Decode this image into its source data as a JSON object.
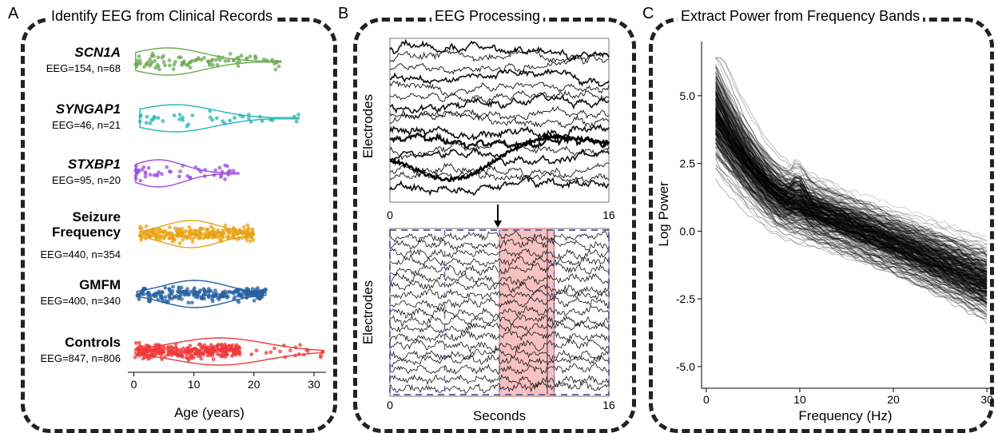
{
  "panels": {
    "a": {
      "letter": "A",
      "title": "Identify EEG from Clinical Records"
    },
    "b": {
      "letter": "B",
      "title": "EEG Processing"
    },
    "c": {
      "letter": "C",
      "title": "Extract Power from Frequency Bands"
    }
  },
  "colors": {
    "scn1a": "#6aa84f",
    "syngap1": "#22b5b5",
    "stxbp1": "#9b4ddb",
    "seizure": "#e8a317",
    "gmfm": "#245fa0",
    "controls": "#f03838",
    "highlight": "#f4b6b6",
    "dashed_box": "#6a6aa8"
  },
  "chart_data": [
    {
      "type": "scatter",
      "subtype": "violin-jitter",
      "xlabel": "Age (years)",
      "x_ticks": [
        0,
        10,
        20,
        30
      ],
      "xlim": [
        -1,
        32
      ],
      "groups": [
        {
          "name": "SCN1A",
          "label_italic": true,
          "info": "EEG=154, n=68",
          "eeg": 154,
          "n": 68,
          "age_range": [
            0.3,
            24.5
          ],
          "color_key": "scn1a"
        },
        {
          "name": "SYNGAP1",
          "label_italic": true,
          "info": "EEG=46, n=21",
          "eeg": 46,
          "n": 21,
          "age_range": [
            1,
            27.5
          ],
          "color_key": "syngap1"
        },
        {
          "name": "STXBP1",
          "label_italic": true,
          "info": "EEG=95, n=20",
          "eeg": 95,
          "n": 20,
          "age_range": [
            0.3,
            17.5
          ],
          "color_key": "stxbp1"
        },
        {
          "name": "Seizure Frequency",
          "label_italic": false,
          "info": "EEG=440, n=354",
          "eeg": 440,
          "n": 354,
          "age_range": [
            1,
            20
          ],
          "color_key": "seizure"
        },
        {
          "name": "GMFM",
          "label_italic": false,
          "info": "EEG=400, n=340",
          "eeg": 400,
          "n": 340,
          "age_range": [
            0.5,
            22
          ],
          "color_key": "gmfm"
        },
        {
          "name": "Controls",
          "label_italic": false,
          "info": "EEG=847, n=806",
          "eeg": 847,
          "n": 806,
          "age_range": [
            0.2,
            31.5
          ],
          "color_key": "controls"
        }
      ]
    },
    {
      "type": "line",
      "subtype": "eeg-traces",
      "top": {
        "ylabel": "Electrodes",
        "x_ticks": [
          0,
          16
        ]
      },
      "bottom": {
        "ylabel": "Electrodes",
        "xlabel": "Seconds",
        "x_ticks": [
          0,
          16
        ],
        "epoch_lines": [
          0,
          4,
          8,
          12,
          16
        ],
        "highlight": [
          8,
          12
        ]
      }
    },
    {
      "type": "line",
      "subtype": "power-spectra",
      "xlabel": "Frequency (Hz)",
      "ylabel": "Log Power",
      "x_ticks": [
        0,
        10,
        20,
        30
      ],
      "y_ticks": [
        5.0,
        2.5,
        0.0,
        -2.5,
        -5.0
      ],
      "y_tick_labels": [
        "5.0",
        "2.5",
        "0.0",
        "-2.5",
        "-5.0"
      ],
      "xlim": [
        -0.5,
        30.5
      ],
      "ylim": [
        -5.8,
        7.0
      ],
      "mean_curve": {
        "start": 4.5,
        "at_10hz": 1.0,
        "at_20hz": -0.4,
        "end": -1.9
      }
    }
  ],
  "axes": {
    "a_ticks": [
      "0",
      "10",
      "20",
      "30"
    ],
    "b_top_ticks": [
      "0",
      "16"
    ],
    "b_bottom_ticks": [
      "0",
      "16"
    ]
  }
}
